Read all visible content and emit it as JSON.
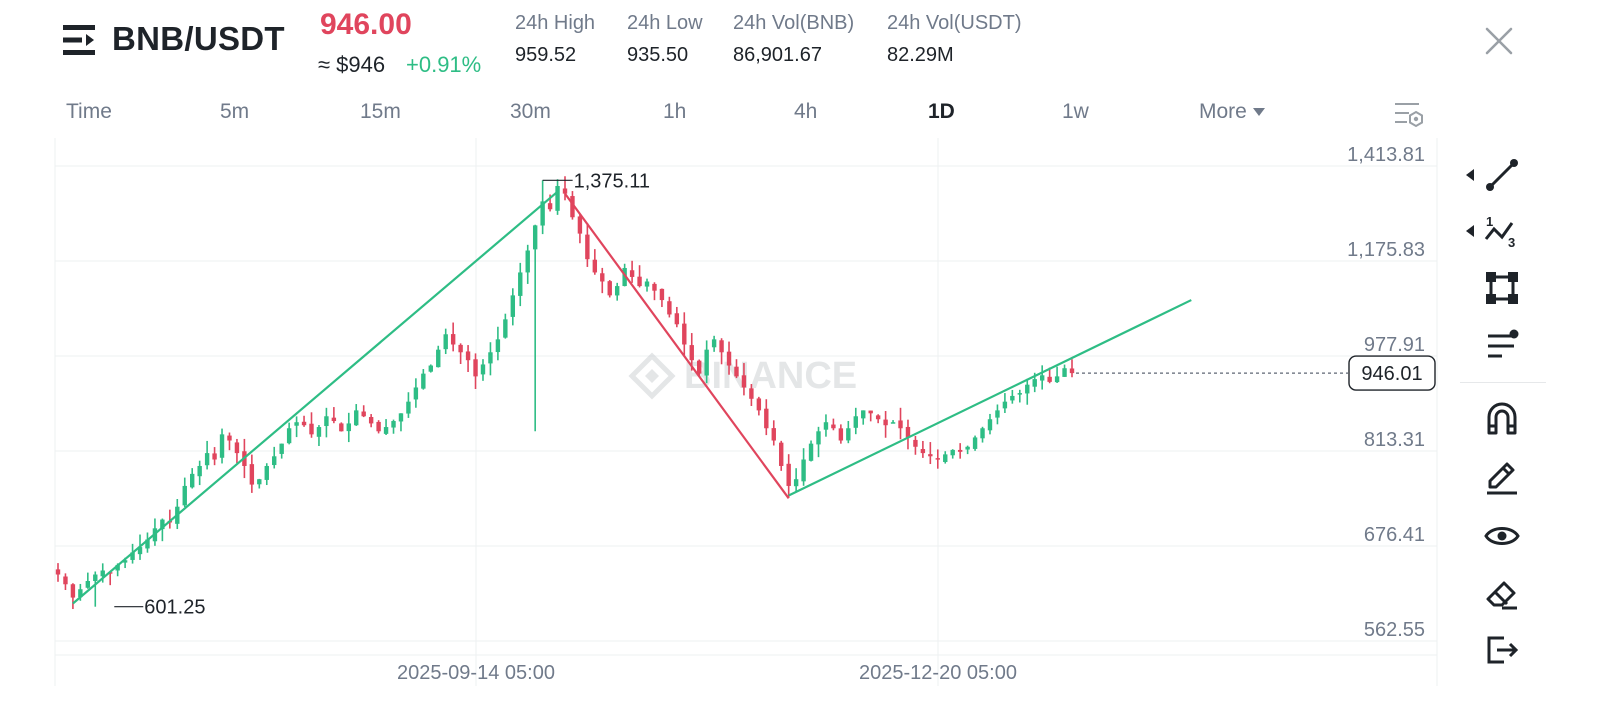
{
  "header": {
    "pair": "BNB/USDT",
    "last_price": "946.00",
    "usd_price": "≈ $946",
    "change_pct": "+0.91%",
    "stats": [
      {
        "label": "24h High",
        "value": "959.52"
      },
      {
        "label": "24h Low",
        "value": "935.50"
      },
      {
        "label": "24h Vol(BNB)",
        "value": "86,901.67"
      },
      {
        "label": "24h Vol(USDT)",
        "value": "82.29M"
      }
    ]
  },
  "tabs": [
    {
      "label": "Time"
    },
    {
      "label": "5m"
    },
    {
      "label": "15m"
    },
    {
      "label": "30m"
    },
    {
      "label": "1h"
    },
    {
      "label": "4h"
    },
    {
      "label": "1D",
      "active": true
    },
    {
      "label": "1w"
    },
    {
      "label": "More"
    }
  ],
  "chart": {
    "price_labels": [
      "1,413.81",
      "1,175.83",
      "977.91",
      "813.31",
      "676.41",
      "562.55"
    ],
    "date_labels": [
      "2025-09-14 05:00",
      "2025-12-20 05:00"
    ],
    "current_price": "946.01",
    "high_label": "1,375.11",
    "low_label": "601.25",
    "watermark": "BINANCE",
    "colors": {
      "up": "#2ebd85",
      "down": "#e0455d",
      "grid": "#eef0f2"
    }
  },
  "chart_data": {
    "type": "candlestick",
    "interval": "1D",
    "y_scale": "log",
    "ylim": [
      540,
      1480
    ],
    "y_ticks": [
      1413.81,
      1175.83,
      977.91,
      813.31,
      676.41,
      562.55
    ],
    "x_ticks": [
      "2025-09-14 05:00",
      "2025-12-20 05:00"
    ],
    "period_high": 1375.11,
    "period_low": 601.25,
    "last_price": 946.01,
    "close_path": [
      640,
      628,
      612,
      622,
      632,
      640,
      645,
      642,
      652,
      658,
      668,
      675,
      685,
      700,
      712,
      708,
      730,
      760,
      778,
      790,
      810,
      800,
      840,
      830,
      810,
      790,
      762,
      770,
      790,
      805,
      825,
      850,
      860,
      855,
      840,
      852,
      870,
      862,
      845,
      858,
      880,
      870,
      858,
      845,
      852,
      862,
      875,
      895,
      920,
      945,
      960,
      990,
      1020,
      1000,
      985,
      970,
      940,
      962,
      985,
      1010,
      1050,
      1100,
      1150,
      1200,
      1260,
      1320,
      1300,
      1360,
      1340,
      1280,
      1240,
      1180,
      1150,
      1130,
      1100,
      1120,
      1160,
      1140,
      1120,
      1130,
      1110,
      1090,
      1060,
      1040,
      1000,
      970,
      945,
      990,
      1010,
      985,
      960,
      940,
      920,
      900,
      880,
      850,
      830,
      790,
      760,
      770,
      800,
      825,
      845,
      860,
      850,
      830,
      850,
      870,
      880,
      875,
      865,
      855,
      860,
      850,
      835,
      820,
      810,
      805,
      800,
      808,
      815,
      812,
      820,
      835,
      850,
      865,
      880,
      895,
      905,
      910,
      925,
      935,
      942,
      930,
      940,
      955,
      946
    ],
    "trend_lines": [
      {
        "color": "#2ebd85",
        "from": {
          "index": 2,
          "price": 605
        },
        "to": {
          "index": 67,
          "price": 1345
        }
      },
      {
        "color": "#e0455d",
        "from": {
          "index": 68,
          "price": 1340
        },
        "to": {
          "index": 98,
          "price": 742
        }
      },
      {
        "color": "#2ebd85",
        "from": {
          "index": 98,
          "price": 746
        },
        "to": {
          "index": 152,
          "price": 1090
        }
      }
    ]
  },
  "toolbar": {
    "tools": [
      {
        "icon": "trend-line-icon"
      },
      {
        "icon": "fibonacci-icon"
      },
      {
        "icon": "rectangle-icon"
      },
      {
        "icon": "indicator-icon"
      },
      {
        "icon": "magnet-icon"
      },
      {
        "icon": "pencil-icon"
      },
      {
        "icon": "eye-icon"
      },
      {
        "icon": "eraser-icon"
      },
      {
        "icon": "exit-icon"
      }
    ]
  }
}
